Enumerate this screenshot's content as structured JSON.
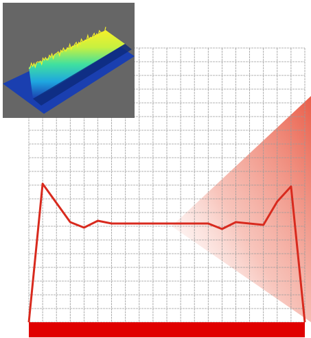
{
  "colors": {
    "background": "#ffffff",
    "grid_line": "#9a9a9a",
    "profile_line": "#d82a1e",
    "base_bar": "#e00000",
    "beam_wedge": "#e8553f",
    "inset_background": "#666666",
    "inset_plane": "#1a3fb0"
  },
  "grid": {
    "columns": 20,
    "rows": 20
  },
  "profile": {
    "x": [
      0,
      1,
      3,
      4,
      5,
      6,
      13,
      14,
      15,
      17,
      18,
      19,
      20
    ],
    "y": [
      0,
      10.1,
      7.3,
      6.9,
      7.4,
      7.2,
      7.2,
      6.8,
      7.3,
      7.1,
      8.8,
      9.9,
      0
    ]
  },
  "inset": {
    "surface": "3d-beam-intensity",
    "colormap": [
      "#1a3fb0",
      "#1fa6e0",
      "#3fe0a0",
      "#c8f040",
      "#f5f02a"
    ]
  }
}
